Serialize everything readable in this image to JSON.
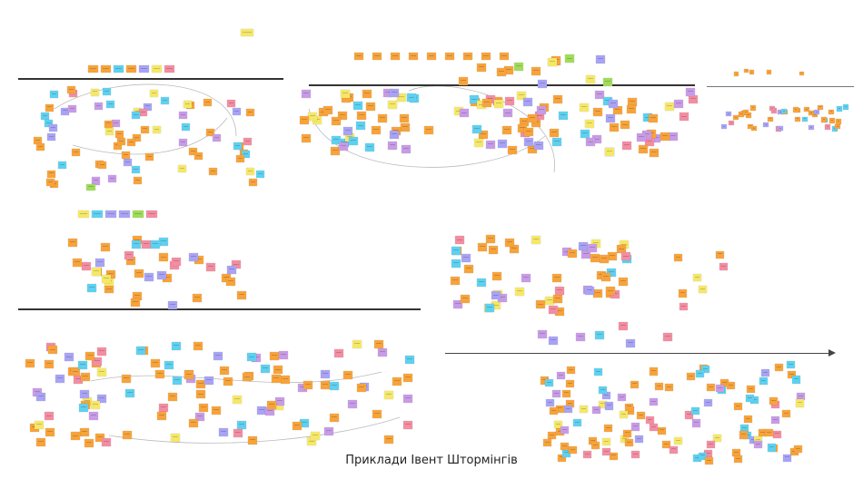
{
  "slide": {
    "caption": "Приклади Івент Штормінгів"
  },
  "colors": {
    "event": "#f7a33c",
    "command": "#5fd0ef",
    "aggregate": "#f5e768",
    "actor": "#a8a3f4",
    "policy": "#c79be6",
    "hotspot": "#f28da2",
    "readmodel": "#9fdc5a",
    "line": "#333333"
  }
}
